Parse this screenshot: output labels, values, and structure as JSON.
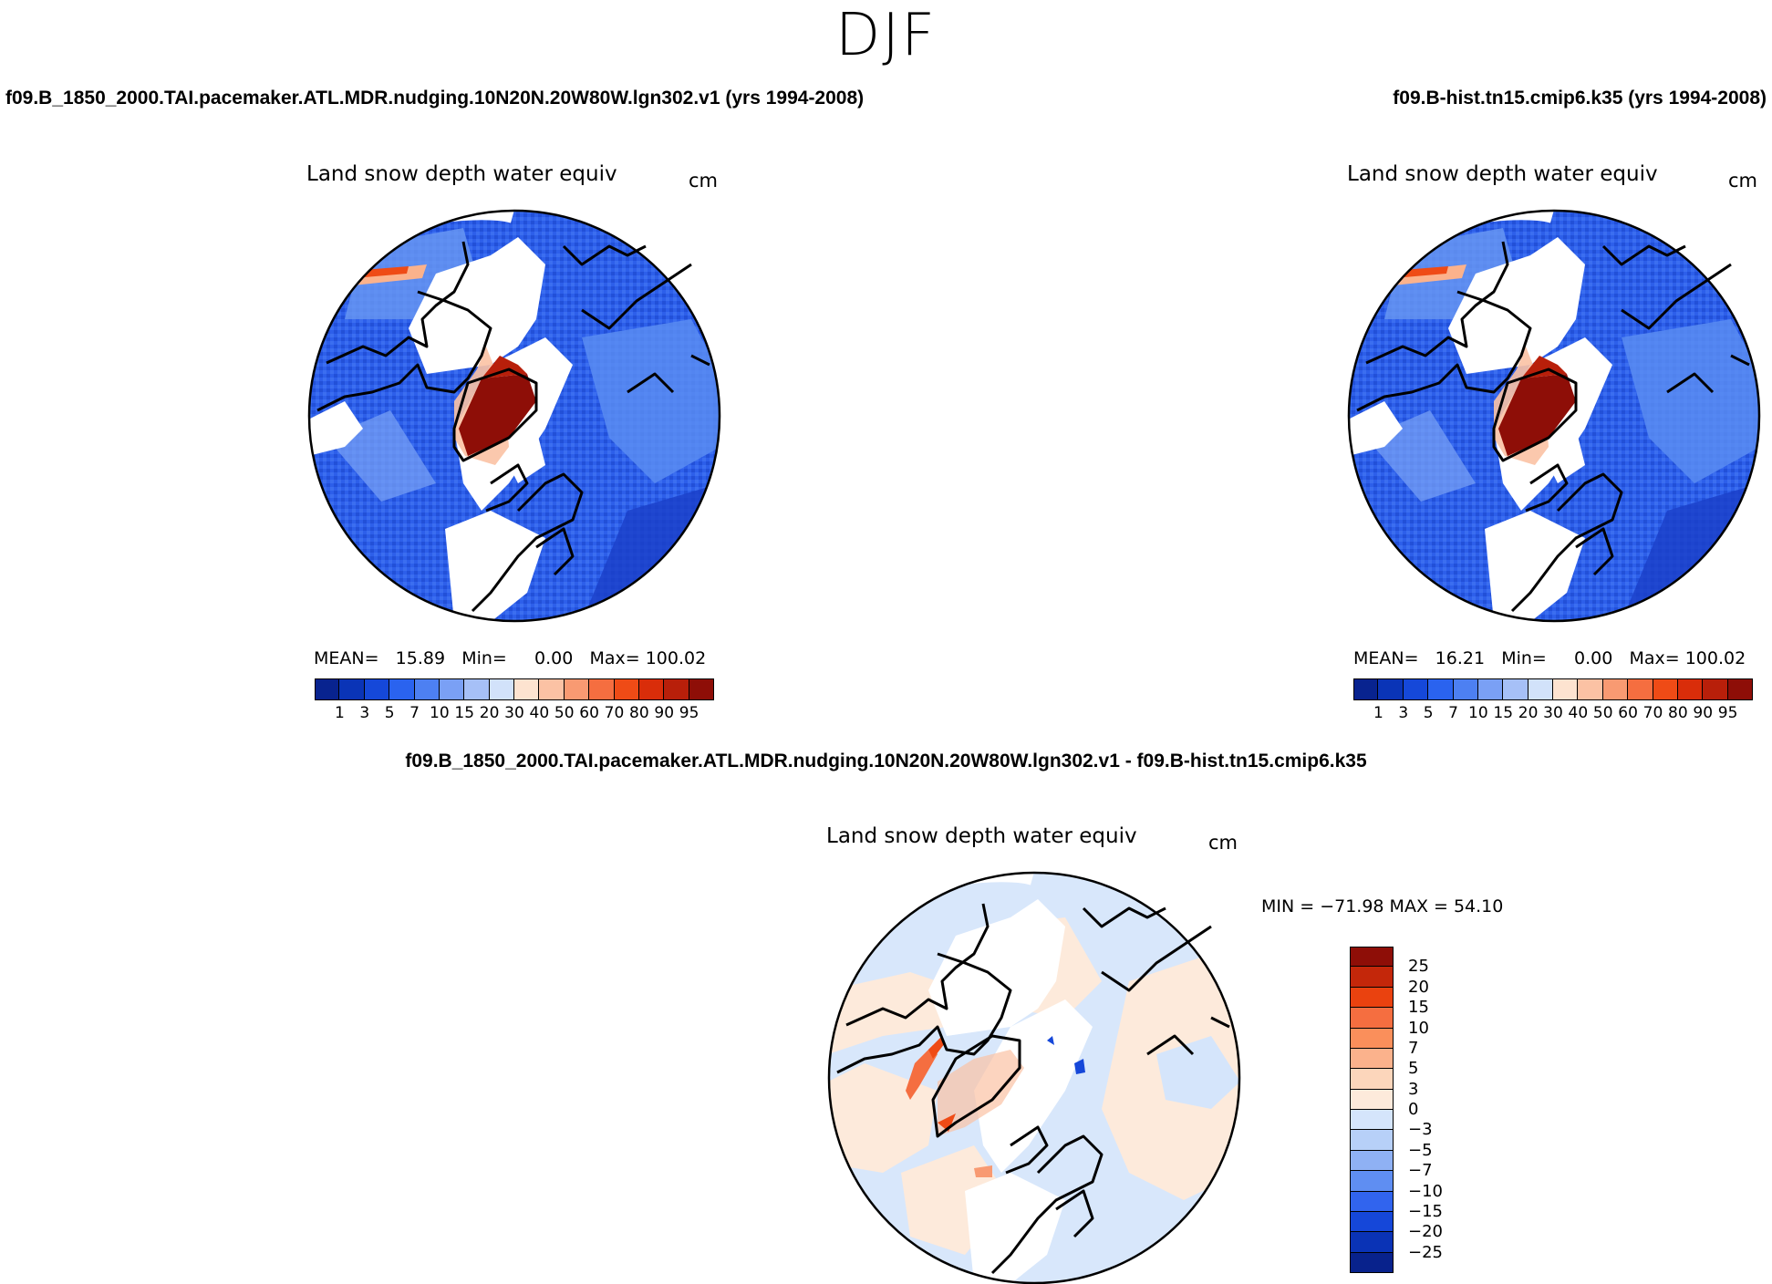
{
  "season": "DJF",
  "panels": {
    "left": {
      "run_title": "f09.B_1850_2000.TAI.pacemaker.ATL.MDR.nudging.10N20N.20W80W.lgn302.v1 (yrs 1994-2008)",
      "plot_title": "Land snow depth water equiv",
      "units": "cm",
      "mean_label": "MEAN=",
      "mean": "15.89",
      "min_label": "Min=",
      "min": "0.00",
      "max_label": "Max=",
      "max": "100.02"
    },
    "right": {
      "run_title": "f09.B-hist.tn15.cmip6.k35 (yrs 1994-2008)",
      "plot_title": "Land snow depth water equiv",
      "units": "cm",
      "mean_label": "MEAN=",
      "mean": "16.21",
      "min_label": "Min=",
      "min": "0.00",
      "max_label": "Max=",
      "max": "100.02"
    },
    "diff": {
      "run_title": "f09.B_1850_2000.TAI.pacemaker.ATL.MDR.nudging.10N20N.20W80W.lgn302.v1 - f09.B-hist.tn15.cmip6.k35",
      "plot_title": "Land snow depth water equiv",
      "units": "cm",
      "minmax_text": "MIN = −71.98 MAX =   54.10"
    }
  },
  "colorbar_abs": {
    "colors": [
      "#08238f",
      "#0a34b7",
      "#1548d9",
      "#2a63ef",
      "#4d80f2",
      "#7aa0f5",
      "#a6c0f7",
      "#d2e2fa",
      "#fde3d0",
      "#fbc2a4",
      "#f89a72",
      "#f56e40",
      "#ef4b16",
      "#d92d0a",
      "#b81f0a",
      "#8e0e07"
    ],
    "labels": [
      "1",
      "3",
      "5",
      "7",
      "10",
      "15",
      "20",
      "30",
      "40",
      "50",
      "60",
      "70",
      "80",
      "90",
      "95"
    ]
  },
  "colorbar_diff": {
    "colors": [
      "#8e0e07",
      "#c4270a",
      "#ea420f",
      "#f56e40",
      "#fa8f5b",
      "#fbb28c",
      "#fcd6bb",
      "#fdeadb",
      "#d5e5fb",
      "#b7d0f8",
      "#8fb1f4",
      "#5f8ef2",
      "#3164ee",
      "#1547d9",
      "#0a33b6",
      "#08228c"
    ],
    "labels": [
      "25",
      "20",
      "15",
      "10",
      "7",
      "5",
      "3",
      "0",
      "−3",
      "−5",
      "−7",
      "−10",
      "−15",
      "−20",
      "−25"
    ]
  }
}
